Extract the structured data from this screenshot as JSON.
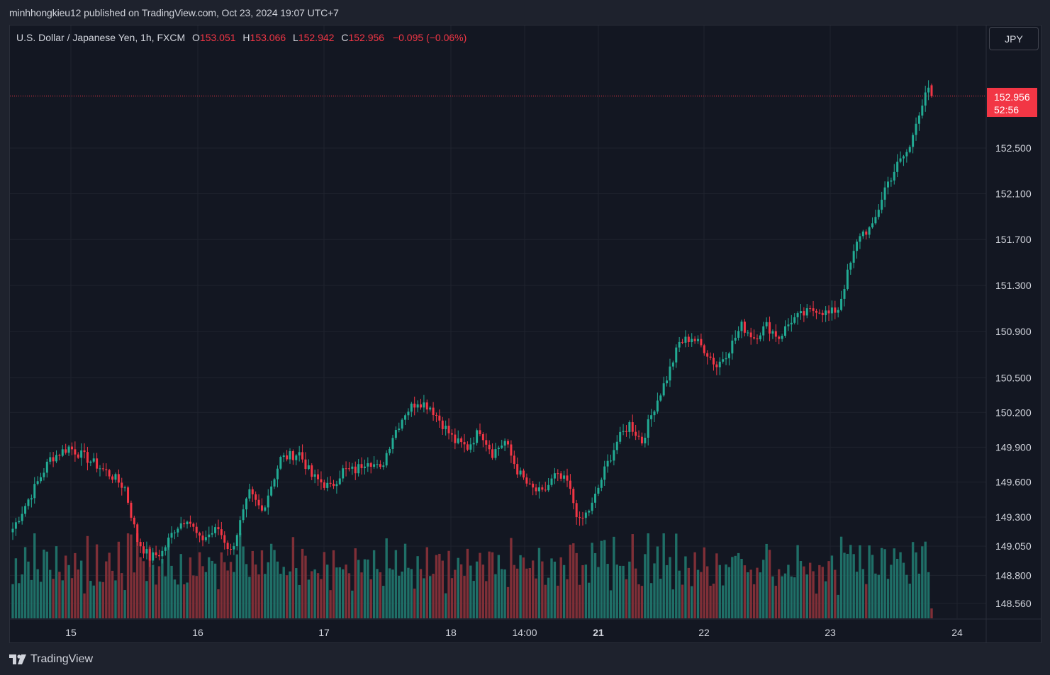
{
  "header": {
    "publisher_line": "minhhongkieu12 published on TradingView.com, Oct 23, 2024 19:07 UTC+7"
  },
  "legend": {
    "symbol": "U.S. Dollar / Japanese Yen, 1h, FXCM",
    "open_label": "O",
    "open": "153.051",
    "high_label": "H",
    "high": "153.066",
    "low_label": "L",
    "low": "152.942",
    "close_label": "C",
    "close": "152.956",
    "change": "−0.095 (−0.06%)"
  },
  "currency_button": {
    "label": "JPY"
  },
  "price_tag": {
    "price": "152.956",
    "countdown": "52:56"
  },
  "footer": {
    "brand": "TradingView"
  },
  "colors": {
    "up": "#22ab94",
    "down": "#f23645",
    "vol_up": "#1f6f67",
    "vol_down": "#7f2f37",
    "background": "#131722",
    "grid": "#1f232e",
    "text": "#d1d4dc"
  },
  "chart_data": {
    "type": "candlestick",
    "instrument": "USDJPY",
    "interval": "1h",
    "price_axis": {
      "ticks": [
        "148.560",
        "148.800",
        "149.050",
        "149.300",
        "149.600",
        "149.900",
        "150.200",
        "150.500",
        "150.900",
        "151.300",
        "151.700",
        "152.100",
        "152.500"
      ],
      "scale": "log"
    },
    "time_axis": {
      "labels": [
        "15",
        "16",
        "17",
        "18",
        "14:00",
        "21",
        "22",
        "23",
        "24"
      ]
    },
    "grid": true,
    "anchors": [
      [
        0,
        149.2
      ],
      [
        6,
        149.5
      ],
      [
        12,
        149.8
      ],
      [
        18,
        149.9
      ],
      [
        24,
        149.8
      ],
      [
        32,
        149.65
      ],
      [
        36,
        149.55
      ],
      [
        40,
        149.1
      ],
      [
        44,
        148.95
      ],
      [
        48,
        149.0
      ],
      [
        52,
        149.2
      ],
      [
        56,
        149.3
      ],
      [
        60,
        149.1
      ],
      [
        66,
        149.2
      ],
      [
        70,
        149.0
      ],
      [
        76,
        149.5
      ],
      [
        80,
        149.35
      ],
      [
        86,
        149.8
      ],
      [
        92,
        149.85
      ],
      [
        96,
        149.65
      ],
      [
        102,
        149.55
      ],
      [
        106,
        149.7
      ],
      [
        110,
        149.7
      ],
      [
        114,
        149.8
      ],
      [
        118,
        149.7
      ],
      [
        122,
        150.0
      ],
      [
        126,
        150.2
      ],
      [
        130,
        150.3
      ],
      [
        134,
        150.25
      ],
      [
        138,
        150.1
      ],
      [
        142,
        149.95
      ],
      [
        146,
        149.9
      ],
      [
        150,
        150.05
      ],
      [
        154,
        149.85
      ],
      [
        158,
        149.95
      ],
      [
        162,
        149.7
      ],
      [
        166,
        149.55
      ],
      [
        170,
        149.5
      ],
      [
        174,
        149.65
      ],
      [
        178,
        149.6
      ],
      [
        182,
        149.25
      ],
      [
        186,
        149.4
      ],
      [
        190,
        149.7
      ],
      [
        194,
        149.95
      ],
      [
        198,
        150.1
      ],
      [
        202,
        149.95
      ],
      [
        206,
        150.25
      ],
      [
        210,
        150.5
      ],
      [
        214,
        150.8
      ],
      [
        218,
        150.85
      ],
      [
        222,
        150.75
      ],
      [
        226,
        150.6
      ],
      [
        230,
        150.75
      ],
      [
        234,
        150.95
      ],
      [
        238,
        150.85
      ],
      [
        242,
        150.95
      ],
      [
        246,
        150.85
      ],
      [
        250,
        151.0
      ],
      [
        254,
        151.05
      ],
      [
        258,
        151.1
      ],
      [
        262,
        151.05
      ],
      [
        265,
        151.1
      ],
      [
        268,
        151.4
      ],
      [
        272,
        151.75
      ],
      [
        276,
        151.8
      ],
      [
        280,
        152.15
      ],
      [
        284,
        152.35
      ],
      [
        288,
        152.5
      ],
      [
        290,
        152.75
      ],
      [
        293,
        152.95
      ],
      [
        294,
        153.03
      ],
      [
        295,
        152.956
      ]
    ],
    "volume_profile_note": ""
  }
}
